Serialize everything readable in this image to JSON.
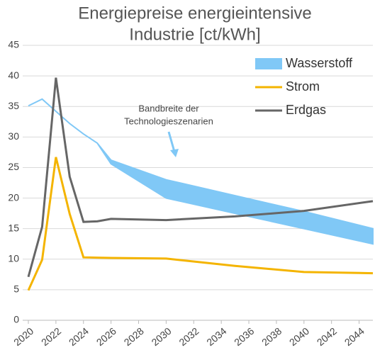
{
  "chart_data": {
    "type": "line",
    "title": [
      "Energiepreise energieintensive",
      "Industrie [ct/kWh]"
    ],
    "annotation": [
      "Bandbreite der",
      "Technologieszenarien"
    ],
    "x": [
      2020,
      2021,
      2022,
      2023,
      2024,
      2025,
      2026,
      2030,
      2035,
      2040,
      2045
    ],
    "series": [
      {
        "name": "Wasserstoff",
        "color": "#80c8f6",
        "kind": "band",
        "high": [
          35.1,
          36.2,
          34.2,
          32.2,
          30.5,
          29.0,
          26.2,
          23.0,
          20.4,
          17.8,
          15.0
        ],
        "low": [
          35.1,
          36.2,
          34.2,
          32.2,
          30.5,
          29.0,
          25.6,
          20.0,
          17.5,
          15.0,
          12.5
        ]
      },
      {
        "name": "Strom",
        "color": "#f4b400",
        "values": [
          4.9,
          9.9,
          26.7,
          17.4,
          10.3,
          10.25,
          10.2,
          10.1,
          8.9,
          7.9,
          7.7
        ]
      },
      {
        "name": "Erdgas",
        "color": "#666666",
        "values": [
          7.1,
          15.3,
          39.7,
          23.5,
          16.1,
          16.2,
          16.6,
          16.4,
          17.0,
          17.9,
          19.5
        ]
      }
    ],
    "xlim": [
      2020,
      2045
    ],
    "xticks": [
      2020,
      2022,
      2024,
      2026,
      2028,
      2030,
      2032,
      2034,
      2036,
      2038,
      2040,
      2042,
      2044
    ],
    "ylim": [
      0,
      45
    ],
    "yticks": [
      0,
      5,
      10,
      15,
      20,
      25,
      30,
      35,
      40,
      45
    ],
    "grid": true
  }
}
